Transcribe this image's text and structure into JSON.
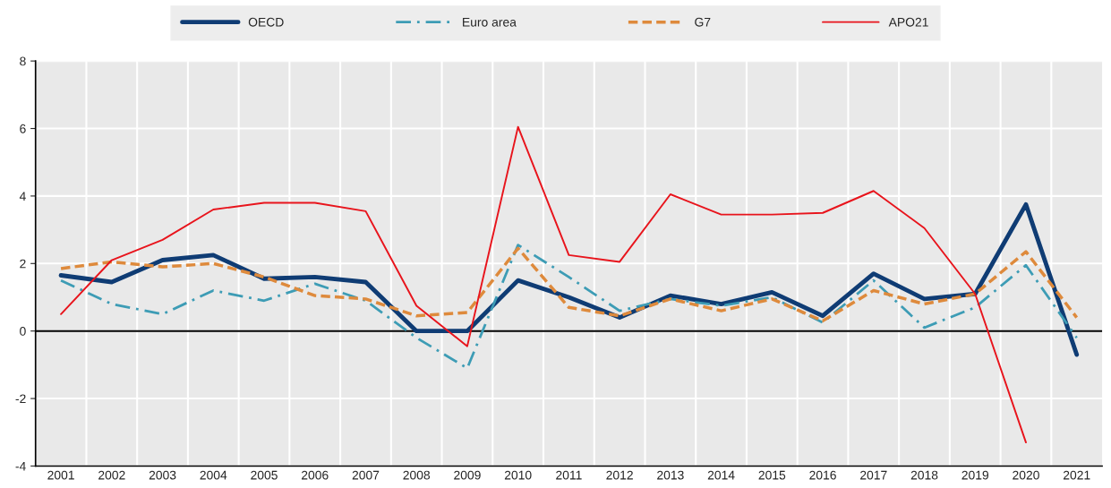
{
  "chart_data": {
    "type": "line",
    "categories": [
      "2001",
      "2002",
      "2003",
      "2004",
      "2005",
      "2006",
      "2007",
      "2008",
      "2009",
      "2010",
      "2011",
      "2012",
      "2013",
      "2014",
      "2015",
      "2016",
      "2017",
      "2018",
      "2019",
      "2020",
      "2021"
    ],
    "series": [
      {
        "name": "OECD",
        "color": "#0f3c74",
        "line_style": "solid",
        "values": [
          1.65,
          1.45,
          2.1,
          2.25,
          1.55,
          1.6,
          1.45,
          0.0,
          0.0,
          1.5,
          1.0,
          0.4,
          1.05,
          0.8,
          1.15,
          0.45,
          1.7,
          0.95,
          1.1,
          3.75,
          -0.7
        ]
      },
      {
        "name": "Euro area",
        "color": "#3d9cb5",
        "line_style": "dashdot",
        "values": [
          1.5,
          0.8,
          0.5,
          1.2,
          0.9,
          1.4,
          0.9,
          -0.2,
          -1.1,
          2.55,
          1.6,
          0.6,
          0.95,
          0.75,
          1.0,
          0.25,
          1.5,
          0.1,
          0.7,
          1.95,
          -0.2
        ]
      },
      {
        "name": "G7",
        "color": "#de8a3c",
        "line_style": "dashed",
        "values": [
          1.85,
          2.05,
          1.9,
          2.0,
          1.6,
          1.05,
          0.95,
          0.45,
          0.55,
          2.45,
          0.7,
          0.45,
          0.95,
          0.6,
          0.95,
          0.3,
          1.2,
          0.8,
          1.1,
          2.35,
          0.4
        ]
      },
      {
        "name": "APO21",
        "color": "#e8141c",
        "line_style": "solid",
        "values": [
          0.5,
          2.1,
          2.7,
          3.6,
          3.8,
          3.8,
          3.55,
          0.75,
          -0.45,
          6.05,
          2.25,
          2.05,
          4.05,
          3.45,
          3.45,
          3.5,
          4.15,
          3.05,
          1.1,
          -3.3,
          null
        ]
      }
    ],
    "ylim": [
      -4,
      8
    ],
    "yticks": [
      -4,
      -2,
      0,
      2,
      4,
      6,
      8
    ],
    "ref_lines": [
      {
        "axis": "y",
        "value": 0,
        "color": "#000000"
      }
    ],
    "grid": true,
    "legend": "top",
    "marker": "none"
  }
}
